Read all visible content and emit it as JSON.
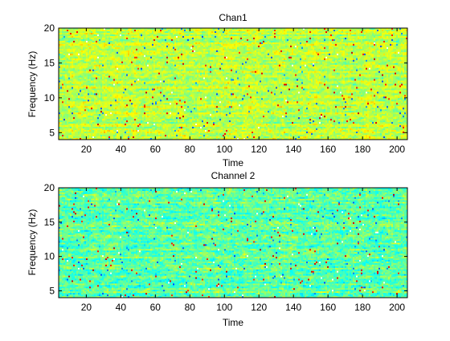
{
  "chart_data": [
    {
      "type": "heatmap",
      "title": "Chan1",
      "xlabel": "Time",
      "ylabel": "Frequency (Hz)",
      "xlim": [
        4,
        206
      ],
      "ylim": [
        4,
        20
      ],
      "xticks": [
        20,
        40,
        60,
        80,
        100,
        120,
        140,
        160,
        180,
        200
      ],
      "yticks": [
        5,
        10,
        15,
        20
      ],
      "colormap": "jet",
      "color_range": "green-yellow dominant with scattered orange/red and blue/white spots",
      "seed": 7
    },
    {
      "type": "heatmap",
      "title": "Channel 2",
      "xlabel": "Time",
      "ylabel": "Frequency (Hz)",
      "xlim": [
        4,
        206
      ],
      "ylim": [
        4,
        20
      ],
      "xticks": [
        20,
        40,
        60,
        80,
        100,
        120,
        140,
        160,
        180,
        200
      ],
      "yticks": [
        5,
        10,
        15,
        20
      ],
      "colormap": "jet",
      "color_range": "cyan-green dominant with scattered yellow/orange and blue spots",
      "seed": 23
    }
  ]
}
